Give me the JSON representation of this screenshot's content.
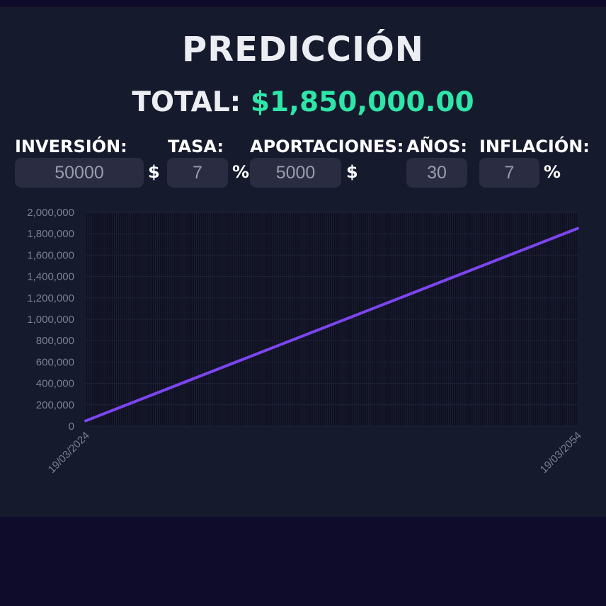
{
  "header": {
    "title": "PREDICCIÓN",
    "total_label": "TOTAL:",
    "total_value": "$1,850,000.00"
  },
  "form": {
    "inversion": {
      "label": "INVERSIÓN:",
      "value": "50000",
      "unit": "$"
    },
    "tasa": {
      "label": "TASA:",
      "value": "7",
      "unit": "%"
    },
    "aportaciones": {
      "label": "APORTACIONES:",
      "value": "5000",
      "unit": "$"
    },
    "anios": {
      "label": "AÑOS:",
      "value": "30"
    },
    "inflacion": {
      "label": "INFLACIÓN:",
      "value": "7",
      "unit": "%"
    }
  },
  "colors": {
    "line": "#7c45f0",
    "accent": "#2ee6a8",
    "panel": "#161a2d",
    "plot_bg": "#0e1020"
  },
  "chart_data": {
    "type": "line",
    "x": [
      "19/03/2024",
      "19/03/2054"
    ],
    "series": [
      {
        "values": [
          50000,
          1850000
        ]
      }
    ],
    "xticks": [
      "19/03/2024",
      "19/03/2054"
    ],
    "yticks": [
      "2,000,000",
      "1,800,000",
      "1,600,000",
      "1,400,000",
      "1,200,000",
      "1,000,000",
      "800,000",
      "600,000",
      "400,000",
      "200,000",
      "0"
    ],
    "ylim": [
      0,
      2000000
    ],
    "grid": true,
    "legend": "none"
  }
}
